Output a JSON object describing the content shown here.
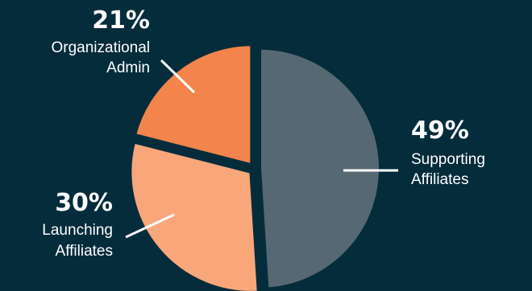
{
  "chart_data": {
    "type": "pie",
    "slices": [
      {
        "pct_label": "49%",
        "value": 49,
        "label_lines": [
          "Supporting",
          "Affiliates"
        ],
        "color": "#566872"
      },
      {
        "pct_label": "30%",
        "value": 30,
        "label_lines": [
          "Launching",
          "Affiliates"
        ],
        "color": "#f8a67a"
      },
      {
        "pct_label": "21%",
        "value": 21,
        "label_lines": [
          "Organizational",
          "Admin"
        ],
        "color": "#f2844c"
      }
    ],
    "background": "#052c3b",
    "leader_color": "#ffffff"
  }
}
